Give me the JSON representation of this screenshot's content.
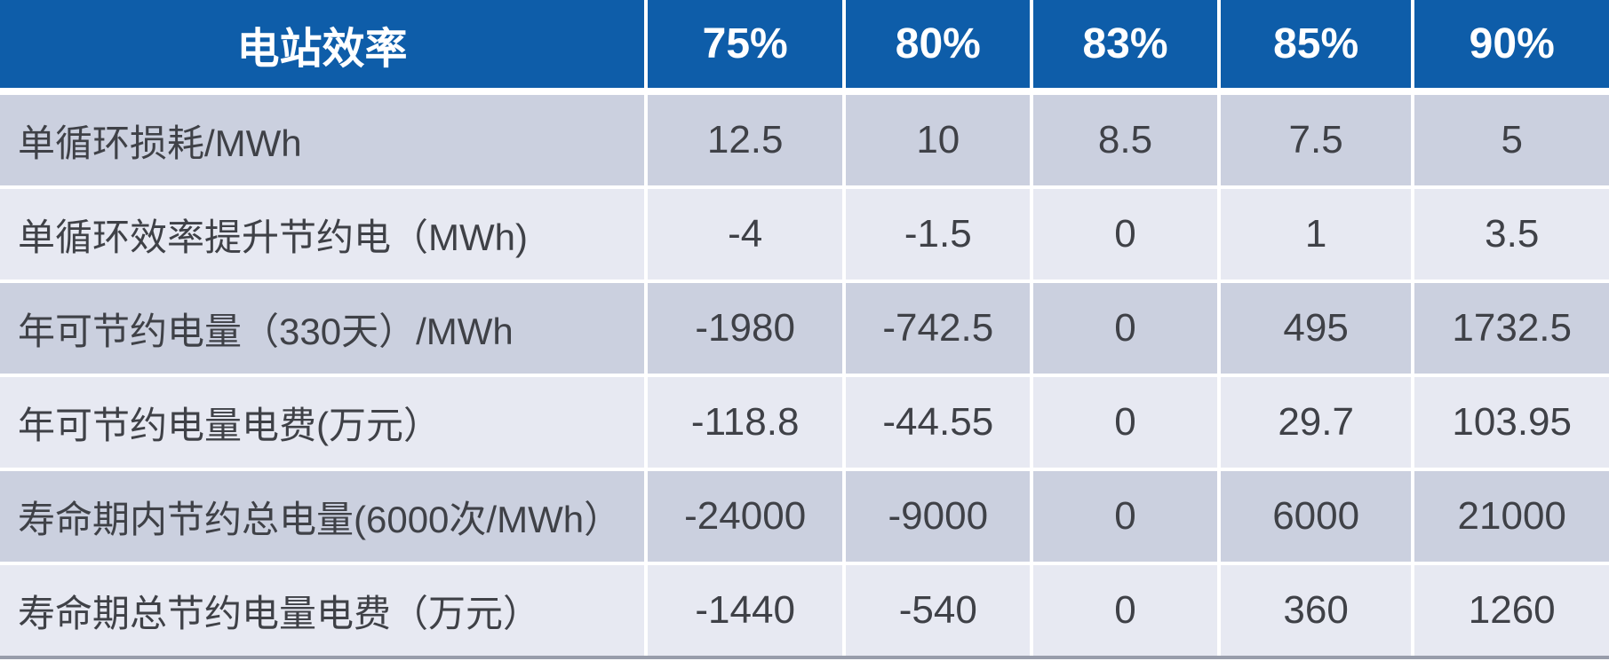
{
  "table": {
    "header": {
      "label": "电站效率",
      "columns": [
        "75%",
        "80%",
        "83%",
        "85%",
        "90%"
      ]
    },
    "rows": [
      {
        "label": "单循环损耗/MWh",
        "values": [
          "12.5",
          "10",
          "8.5",
          "7.5",
          "5"
        ]
      },
      {
        "label": "单循环效率提升节约电（MWh)",
        "values": [
          "-4",
          "-1.5",
          "0",
          "1",
          "3.5"
        ]
      },
      {
        "label": "年可节约电量（330天）/MWh",
        "values": [
          "-1980",
          "-742.5",
          "0",
          "495",
          "1732.5"
        ]
      },
      {
        "label": "年可节约电量电费(万元）",
        "values": [
          "-118.8",
          "-44.55",
          "0",
          "29.7",
          "103.95"
        ]
      },
      {
        "label": "寿命期内节约总电量(6000次/MWh）",
        "values": [
          "-24000",
          "-9000",
          "0",
          "6000",
          "21000"
        ]
      },
      {
        "label": "寿命期总节约电量电费（万元）",
        "values": [
          "-1440",
          "-540",
          "0",
          "360",
          "1260"
        ]
      }
    ]
  },
  "colors": {
    "header_background": "#0e5da9",
    "header_text": "#ffffff",
    "row_odd_background": "#cbd0df",
    "row_even_background": "#e7e9f2",
    "body_text": "#3f4147",
    "grid_gap": "#ffffff",
    "bottom_rule": "#989dab"
  },
  "chart_data": {
    "type": "table",
    "title": "电站效率",
    "columns": [
      "电站效率",
      "75%",
      "80%",
      "83%",
      "85%",
      "90%"
    ],
    "rows": [
      {
        "label": "单循环损耗/MWh",
        "values": [
          12.5,
          10,
          8.5,
          7.5,
          5
        ]
      },
      {
        "label": "单循环效率提升节约电（MWh)",
        "values": [
          -4,
          -1.5,
          0,
          1,
          3.5
        ]
      },
      {
        "label": "年可节约电量（330天）/MWh",
        "values": [
          -1980,
          -742.5,
          0,
          495,
          1732.5
        ]
      },
      {
        "label": "年可节约电量电费(万元）",
        "values": [
          -118.8,
          -44.55,
          0,
          29.7,
          103.95
        ]
      },
      {
        "label": "寿命期内节约总电量(6000次/MWh）",
        "values": [
          -24000,
          -9000,
          0,
          6000,
          21000
        ]
      },
      {
        "label": "寿命期总节约电量电费（万元）",
        "values": [
          -1440,
          -540,
          0,
          360,
          1260
        ]
      }
    ]
  }
}
